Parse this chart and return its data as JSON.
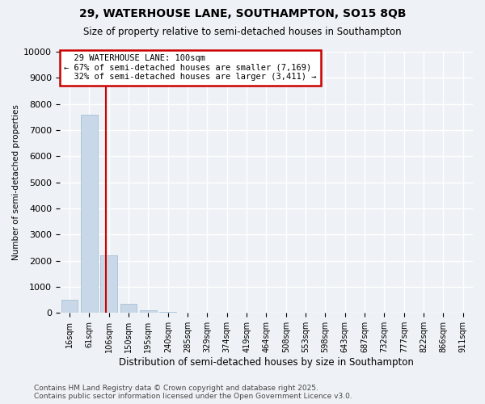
{
  "title": "29, WATERHOUSE LANE, SOUTHAMPTON, SO15 8QB",
  "subtitle": "Size of property relative to semi-detached houses in Southampton",
  "xlabel": "Distribution of semi-detached houses by size in Southampton",
  "ylabel": "Number of semi-detached properties",
  "categories": [
    "16sqm",
    "61sqm",
    "106sqm",
    "150sqm",
    "195sqm",
    "240sqm",
    "285sqm",
    "329sqm",
    "374sqm",
    "419sqm",
    "464sqm",
    "508sqm",
    "553sqm",
    "598sqm",
    "643sqm",
    "687sqm",
    "732sqm",
    "777sqm",
    "822sqm",
    "866sqm",
    "911sqm"
  ],
  "values": [
    500,
    7600,
    2200,
    350,
    100,
    30,
    0,
    0,
    0,
    0,
    0,
    0,
    0,
    0,
    0,
    0,
    0,
    0,
    0,
    0,
    0
  ],
  "bar_color": "#c8d8e8",
  "bar_edgecolor": "#a0b8d0",
  "vline_x": 1.85,
  "vline_color": "#cc0000",
  "vline_label": "29 WATERHOUSE LANE: 100sqm",
  "annotation_smaller_pct": "67%",
  "annotation_smaller_n": "7,169",
  "annotation_larger_pct": "32%",
  "annotation_larger_n": "3,411",
  "ylim": [
    0,
    10000
  ],
  "yticks": [
    0,
    1000,
    2000,
    3000,
    4000,
    5000,
    6000,
    7000,
    8000,
    9000,
    10000
  ],
  "background_color": "#eef2f6",
  "grid_color": "#ffffff",
  "title_fontsize": 10,
  "subtitle_fontsize": 8.5,
  "footer": "Contains HM Land Registry data © Crown copyright and database right 2025.\nContains public sector information licensed under the Open Government Licence v3.0."
}
